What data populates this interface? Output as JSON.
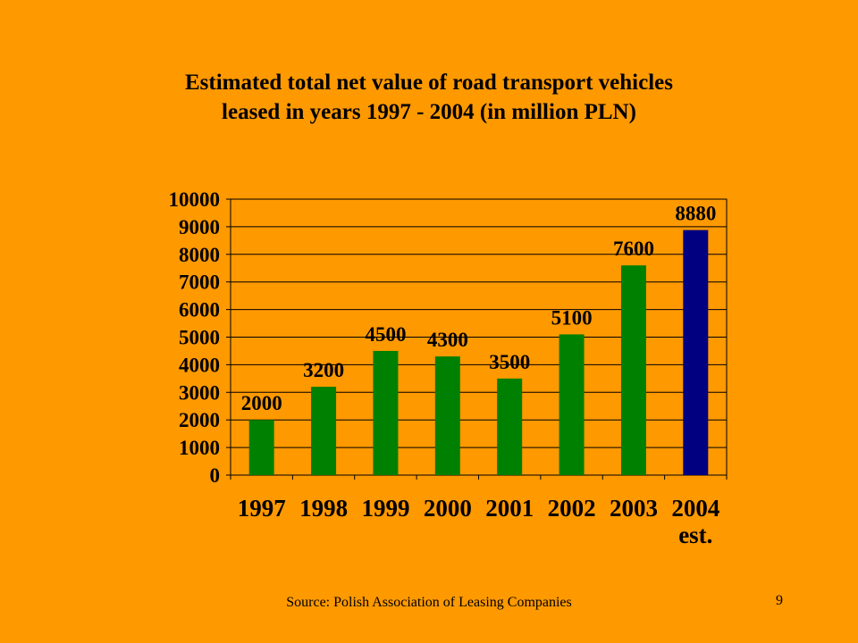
{
  "chart_data": {
    "type": "bar",
    "title_line1": "Estimated total net value of road transport vehicles",
    "title_line2": "leased in years 1997 - 2004 (in million PLN)",
    "categories": [
      "1997",
      "1998",
      "1999",
      "2000",
      "2001",
      "2002",
      "2003",
      "2004"
    ],
    "category_sublabels": [
      "",
      "",
      "",
      "",
      "",
      "",
      "",
      "est."
    ],
    "values": [
      2000,
      3200,
      4500,
      4300,
      3500,
      5100,
      7600,
      8880
    ],
    "bar_colors": [
      "#008000",
      "#008000",
      "#008000",
      "#008000",
      "#008000",
      "#008000",
      "#008000",
      "#000080"
    ],
    "ylim": [
      0,
      10000
    ],
    "yticks": [
      0,
      1000,
      2000,
      3000,
      4000,
      5000,
      6000,
      7000,
      8000,
      9000,
      10000
    ],
    "grid": true,
    "legend": "none"
  },
  "footer": {
    "source": "Source: Polish Association of Leasing Companies",
    "page_number": "9"
  },
  "colors": {
    "background": "#FF9900",
    "bar": "#008000",
    "bar_estimate": "#000080"
  }
}
